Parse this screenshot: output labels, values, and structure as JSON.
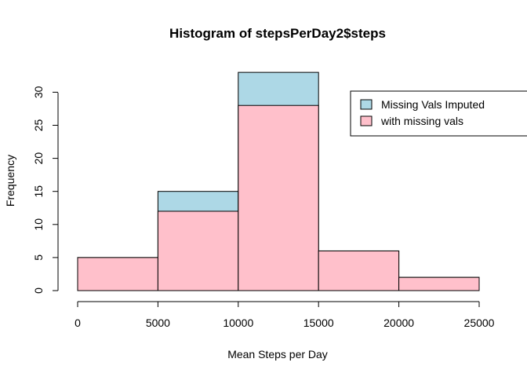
{
  "chart_data": {
    "type": "bar",
    "title": "Histogram of stepsPerDay2$steps",
    "xlabel": "Mean Steps per Day",
    "ylabel": "Frequency",
    "bin_edges": [
      0,
      5000,
      10000,
      15000,
      20000,
      25000
    ],
    "xlim": [
      0,
      25000
    ],
    "ylim": [
      0,
      33
    ],
    "x_ticks": [
      0,
      5000,
      10000,
      15000,
      20000,
      25000
    ],
    "y_ticks": [
      0,
      5,
      10,
      15,
      20,
      25,
      30
    ],
    "grid": false,
    "legend_position": "top-right",
    "series": [
      {
        "name": "Missing Vals Imputed",
        "color": "#add8e6",
        "values": [
          5,
          15,
          33,
          6,
          2
        ]
      },
      {
        "name": "with missing vals",
        "color": "#ffc0cb",
        "values": [
          5,
          12,
          28,
          6,
          2
        ]
      }
    ]
  }
}
